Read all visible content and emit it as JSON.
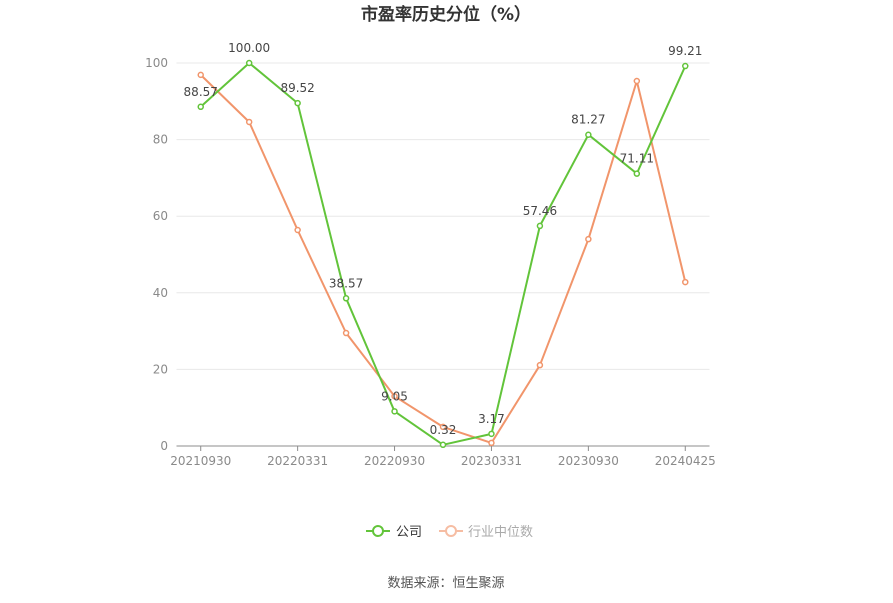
{
  "source": "数据来源：恒生聚源",
  "chart_data": {
    "type": "line",
    "title": "市盈率历史分位（%）",
    "xlabel": "",
    "ylabel": "",
    "categories": [
      "20210930",
      "",
      "20220331",
      "",
      "20220930",
      "",
      "20230331",
      "",
      "20230930",
      "",
      "20240425"
    ],
    "y_ticks": [
      0,
      20,
      40,
      60,
      80,
      100
    ],
    "ylim": [
      0,
      100
    ],
    "grid": true,
    "legend_position": "bottom",
    "series": [
      {
        "name": "公司",
        "color": "#62c43a",
        "show_labels": true,
        "values": [
          88.57,
          100.0,
          89.52,
          38.57,
          9.05,
          0.32,
          3.17,
          57.46,
          81.27,
          71.11,
          99.21
        ]
      },
      {
        "name": "行业中位数",
        "color": "#f1956b",
        "show_labels": false,
        "values": [
          96.9,
          84.6,
          56.4,
          29.5,
          13.0,
          5.0,
          0.8,
          21.1,
          54.0,
          95.3,
          42.8
        ]
      }
    ]
  }
}
